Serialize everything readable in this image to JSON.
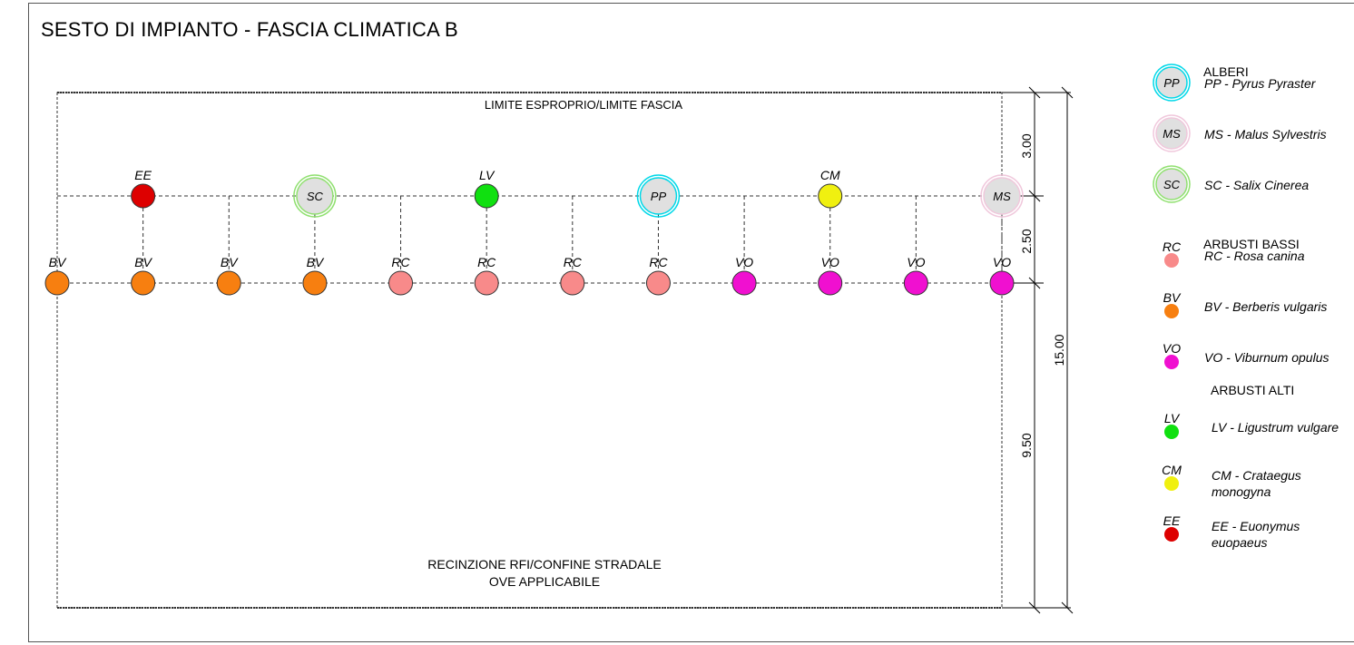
{
  "title": "SESTO DI IMPIANTO - FASCIA CLIMATICA B",
  "labels": {
    "top_boundary": "LIMITE ESPROPRIO/LIMITE FASCIA",
    "bottom_boundary_1": "RECINZIONE RFI/CONFINE STRADALE",
    "bottom_boundary_2": "OVE APPLICABILE"
  },
  "dimensions": {
    "d1": "3.00",
    "d2": "2.50",
    "d3": "9.50",
    "total": "15.00"
  },
  "colors": {
    "PP": "#e0e0e0",
    "MS": "#e0e0e0",
    "SC": "#e0e0e0",
    "PP_ring": "#00d8e8",
    "MS_ring": "#f0c8dc",
    "SC_ring": "#90e070",
    "RC": "#f88a8a",
    "BV": "#f77f10",
    "VO": "#f010d0",
    "LV": "#10e010",
    "CM": "#f0f010",
    "EE": "#dd0000"
  },
  "upper_row": [
    {
      "code": "EE",
      "type": "shrub"
    },
    {
      "code": "",
      "type": "none"
    },
    {
      "code": "SC",
      "type": "tree"
    },
    {
      "code": "",
      "type": "none"
    },
    {
      "code": "LV",
      "type": "shrub"
    },
    {
      "code": "",
      "type": "none"
    },
    {
      "code": "PP",
      "type": "tree"
    },
    {
      "code": "",
      "type": "none"
    },
    {
      "code": "CM",
      "type": "shrub"
    },
    {
      "code": "",
      "type": "none"
    },
    {
      "code": "MS",
      "type": "tree"
    }
  ],
  "lower_row": [
    "BV",
    "BV",
    "BV",
    "BV",
    "RC",
    "RC",
    "RC",
    "RC",
    "VO",
    "VO",
    "VO",
    "VO"
  ],
  "legend": {
    "sections": [
      {
        "heading": "ALBERI",
        "items": [
          {
            "code": "PP",
            "type": "tree",
            "lines": [
              "PP - Pyrus Pyraster"
            ]
          },
          {
            "code": "MS",
            "type": "tree",
            "lines": [
              "MS - Malus Sylvestris"
            ]
          },
          {
            "code": "SC",
            "type": "tree",
            "lines": [
              "SC - Salix Cinerea"
            ]
          }
        ]
      },
      {
        "heading": "ARBUSTI BASSI",
        "items": [
          {
            "code": "RC",
            "type": "shrub",
            "lines": [
              "RC - Rosa canina"
            ]
          },
          {
            "code": "BV",
            "type": "shrub",
            "lines": [
              "BV - Berberis vulgaris"
            ]
          },
          {
            "code": "VO",
            "type": "shrub",
            "lines": [
              "VO - Viburnum opulus"
            ]
          }
        ]
      },
      {
        "heading": "ARBUSTI ALTI",
        "items": [
          {
            "code": "LV",
            "type": "shrub",
            "lines": [
              "LV - Ligustrum vulgare"
            ]
          },
          {
            "code": "CM",
            "type": "shrub",
            "lines": [
              "CM - Crataegus",
              "monogyna"
            ]
          },
          {
            "code": "EE",
            "type": "shrub",
            "lines": [
              "EE - Euonymus",
              "euopaeus"
            ]
          }
        ]
      }
    ]
  }
}
